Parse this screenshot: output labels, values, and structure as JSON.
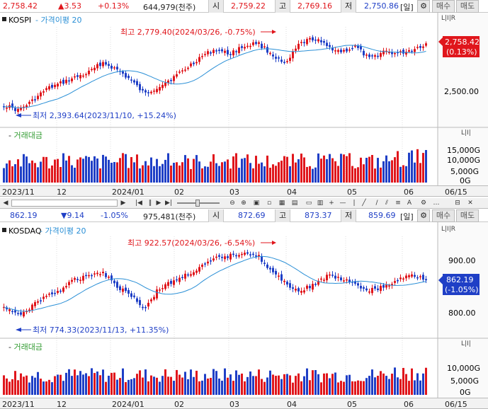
{
  "kospi_quote": {
    "price": "2,758.42",
    "change": "▲3.53",
    "pct": "+0.13%",
    "volume": "644,979(천주)",
    "open_label": "시",
    "open": "2,759.22",
    "high_label": "고",
    "high": "2,769.16",
    "low_label": "저",
    "low": "2,750.86",
    "period": "[일]",
    "buy": "매수",
    "sell": "매도"
  },
  "kospi_chart": {
    "title": "KOSPI",
    "ma_legend": "가격이평 20",
    "high_note": "최고 2,779.40(2024/03/26, -0.75%)",
    "low_note": "최저 2,393.64(2023/11/10, +15.24%)",
    "y_ticks": [
      "2,500.00"
    ],
    "price_tag_value": "2,758.42",
    "price_tag_pct": "(0.13%)",
    "lir": "L|I|R",
    "vol_title": "거래대금",
    "vol_ticks": [
      "15,000G",
      "10,000G",
      "5,000G",
      "0G"
    ],
    "lir2": "L|I|"
  },
  "kospi_xaxis": {
    "labels": [
      "2023/11",
      "12",
      "2024/01",
      "02",
      "03",
      "04",
      "05",
      "06"
    ],
    "right": "06/15"
  },
  "toolbar_icons": [
    "scroll-left-icon",
    "step-left-icon",
    "pause-icon",
    "play-icon",
    "zoom-minus-icon",
    "zoom-plus-icon",
    "full-view-icon",
    "search-icon",
    "crosshair-icon",
    "line-icon",
    "fib-icon",
    "settings-icon",
    "close-icon"
  ],
  "kosdaq_quote": {
    "price": "862.19",
    "change": "▼9.14",
    "pct": "-1.05%",
    "volume": "975,481(천주)",
    "open_label": "시",
    "open": "872.69",
    "high_label": "고",
    "high": "873.37",
    "low_label": "저",
    "low": "859.69",
    "period": "[일]",
    "buy": "매수",
    "sell": "매도"
  },
  "kosdaq_chart": {
    "title": "KOSDAQ",
    "ma_legend": "가격이평 20",
    "high_note": "최고 922.57(2024/03/26, -6.54%)",
    "low_note": "최저 774.33(2023/11/13, +11.35%)",
    "y_ticks": [
      "900.00",
      "800.00"
    ],
    "price_tag_value": "862.19",
    "price_tag_pct": "(-1.05%)",
    "lir": "L|I|R",
    "vol_title": "거래대금",
    "vol_ticks": [
      "10,000G",
      "5,000G",
      "0G"
    ],
    "lir2": "L|I|"
  },
  "kosdaq_xaxis": {
    "labels": [
      "2023/11",
      "12",
      "2024/01",
      "02",
      "03",
      "04",
      "05",
      "06"
    ],
    "right": "06/15"
  },
  "colors": {
    "up": "#e0161c",
    "down": "#1f3fc6",
    "ma": "#2a8fd6",
    "grid": "#dcdcdc"
  }
}
